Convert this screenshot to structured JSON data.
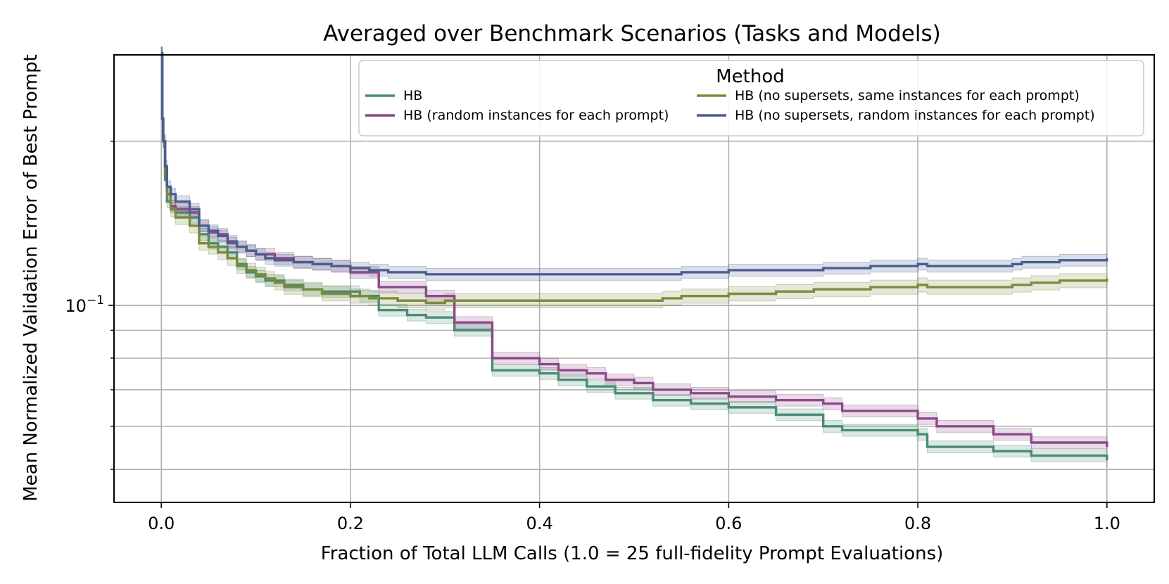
{
  "chart_data": {
    "type": "line",
    "title": "Averaged over Benchmark Scenarios (Tasks and Models)",
    "xlabel": "Fraction of Total LLM Calls (1.0 = 25 full-fidelity Prompt Evaluations)",
    "ylabel": "Mean Normalized Validation Error of Best Prompt",
    "xlim": [
      -0.05,
      1.05
    ],
    "ylim": [
      0.0435,
      0.288
    ],
    "yscale": "log",
    "grid": true,
    "x_ticks": [
      0.0,
      0.2,
      0.4,
      0.6,
      0.8,
      1.0
    ],
    "x_tick_labels": [
      "0.0",
      "0.2",
      "0.4",
      "0.6",
      "0.8",
      "1.0"
    ],
    "y_major_ticks": [
      0.1
    ],
    "y_major_tick_labels": [
      "10^{-1}"
    ],
    "y_tick_label_base": "10",
    "y_tick_label_exp": "−1",
    "y_minor_ticks": [
      0.05,
      0.06,
      0.07,
      0.08,
      0.09,
      0.2
    ],
    "legend": {
      "title": "Method",
      "position": "top-right",
      "columns": 2
    },
    "series": [
      {
        "name": "HB",
        "color": "#4a8c74",
        "x": [
          0.0,
          0.001,
          0.002,
          0.004,
          0.006,
          0.01,
          0.015,
          0.03,
          0.04,
          0.05,
          0.06,
          0.07,
          0.08,
          0.09,
          0.1,
          0.11,
          0.13,
          0.15,
          0.17,
          0.2,
          0.21,
          0.23,
          0.26,
          0.28,
          0.31,
          0.35,
          0.4,
          0.42,
          0.45,
          0.48,
          0.52,
          0.56,
          0.6,
          0.65,
          0.7,
          0.72,
          0.8,
          0.81,
          0.88,
          0.92,
          1.0
        ],
        "values": [
          0.29,
          0.22,
          0.2,
          0.17,
          0.155,
          0.152,
          0.148,
          0.145,
          0.135,
          0.13,
          0.128,
          0.125,
          0.119,
          0.115,
          0.113,
          0.111,
          0.109,
          0.107,
          0.106,
          0.106,
          0.104,
          0.098,
          0.096,
          0.095,
          0.09,
          0.076,
          0.075,
          0.073,
          0.071,
          0.069,
          0.067,
          0.066,
          0.065,
          0.063,
          0.06,
          0.059,
          0.058,
          0.055,
          0.054,
          0.053,
          0.052
        ],
        "band": 0.025
      },
      {
        "name": "HB (random instances for each prompt)",
        "color": "#8a4a88",
        "x": [
          0.0,
          0.001,
          0.002,
          0.004,
          0.006,
          0.01,
          0.015,
          0.03,
          0.04,
          0.05,
          0.06,
          0.07,
          0.08,
          0.09,
          0.1,
          0.12,
          0.14,
          0.16,
          0.18,
          0.2,
          0.23,
          0.28,
          0.31,
          0.35,
          0.4,
          0.42,
          0.45,
          0.47,
          0.5,
          0.52,
          0.56,
          0.6,
          0.65,
          0.7,
          0.72,
          0.8,
          0.82,
          0.88,
          0.92,
          1.0
        ],
        "values": [
          0.29,
          0.22,
          0.2,
          0.175,
          0.16,
          0.152,
          0.15,
          0.148,
          0.14,
          0.136,
          0.135,
          0.13,
          0.128,
          0.126,
          0.124,
          0.122,
          0.12,
          0.119,
          0.118,
          0.115,
          0.108,
          0.104,
          0.093,
          0.08,
          0.078,
          0.076,
          0.075,
          0.073,
          0.072,
          0.07,
          0.069,
          0.068,
          0.067,
          0.066,
          0.064,
          0.062,
          0.06,
          0.058,
          0.056,
          0.055
        ],
        "band": 0.025
      },
      {
        "name": "HB (no supersets, same instances for each prompt)",
        "color": "#7d8a3c",
        "x": [
          0.0,
          0.001,
          0.002,
          0.004,
          0.006,
          0.01,
          0.015,
          0.03,
          0.04,
          0.05,
          0.06,
          0.07,
          0.08,
          0.09,
          0.1,
          0.11,
          0.12,
          0.13,
          0.15,
          0.17,
          0.2,
          0.22,
          0.25,
          0.28,
          0.3,
          0.35,
          0.4,
          0.45,
          0.5,
          0.53,
          0.55,
          0.6,
          0.65,
          0.69,
          0.75,
          0.8,
          0.81,
          0.85,
          0.9,
          0.92,
          0.95,
          1.0
        ],
        "values": [
          0.29,
          0.22,
          0.2,
          0.175,
          0.16,
          0.15,
          0.145,
          0.14,
          0.13,
          0.128,
          0.125,
          0.122,
          0.118,
          0.116,
          0.114,
          0.112,
          0.11,
          0.108,
          0.107,
          0.105,
          0.104,
          0.103,
          0.102,
          0.101,
          0.102,
          0.102,
          0.102,
          0.102,
          0.102,
          0.103,
          0.104,
          0.105,
          0.106,
          0.107,
          0.108,
          0.109,
          0.108,
          0.108,
          0.109,
          0.11,
          0.111,
          0.112
        ],
        "band": 0.03
      },
      {
        "name": "HB (no supersets, random instances for each prompt)",
        "color": "#4a5e90",
        "x": [
          0.0,
          0.001,
          0.002,
          0.004,
          0.006,
          0.01,
          0.015,
          0.03,
          0.04,
          0.05,
          0.06,
          0.07,
          0.08,
          0.09,
          0.1,
          0.11,
          0.12,
          0.14,
          0.16,
          0.18,
          0.2,
          0.22,
          0.24,
          0.28,
          0.35,
          0.4,
          0.45,
          0.5,
          0.55,
          0.6,
          0.65,
          0.7,
          0.75,
          0.8,
          0.81,
          0.85,
          0.9,
          0.91,
          0.95,
          1.0
        ],
        "values": [
          0.29,
          0.22,
          0.2,
          0.18,
          0.165,
          0.16,
          0.155,
          0.15,
          0.14,
          0.137,
          0.134,
          0.131,
          0.128,
          0.126,
          0.124,
          0.122,
          0.121,
          0.12,
          0.119,
          0.118,
          0.117,
          0.116,
          0.115,
          0.114,
          0.114,
          0.114,
          0.114,
          0.114,
          0.115,
          0.116,
          0.116,
          0.117,
          0.118,
          0.119,
          0.118,
          0.118,
          0.119,
          0.12,
          0.121,
          0.122
        ],
        "band": 0.025
      }
    ]
  }
}
